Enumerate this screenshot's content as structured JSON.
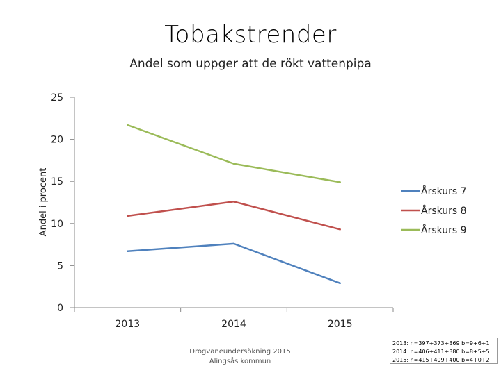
{
  "chart_data": {
    "type": "line",
    "title": "Tobakstrender",
    "subtitle": "Andel som uppger att de rökt vattenpipa",
    "xlabel": "",
    "ylabel": "Andel i procent",
    "categories": [
      "2013",
      "2014",
      "2015"
    ],
    "ylim": [
      0,
      25
    ],
    "yticks": [
      0,
      5,
      10,
      15,
      20,
      25
    ],
    "grid": false,
    "legend_position": "right",
    "series": [
      {
        "name": "Årskurs 7",
        "values": [
          6.7,
          7.6,
          2.9
        ],
        "color": "#4F81BD"
      },
      {
        "name": "Årskurs 8",
        "values": [
          10.9,
          12.6,
          9.3
        ],
        "color": "#C0504D"
      },
      {
        "name": "Årskurs 9",
        "values": [
          21.7,
          17.1,
          14.9
        ],
        "color": "#9BBB59"
      }
    ]
  },
  "footer": {
    "source_line1": "Drogvaneundersökning 2015",
    "source_line2": "Alingsås kommun",
    "note_lines": [
      "2013: n=397+373+369 b=9+6+1",
      "2014: n=406+411+380 b=8+5+5",
      "2015: n=415+409+400 b=4+0+2"
    ]
  }
}
